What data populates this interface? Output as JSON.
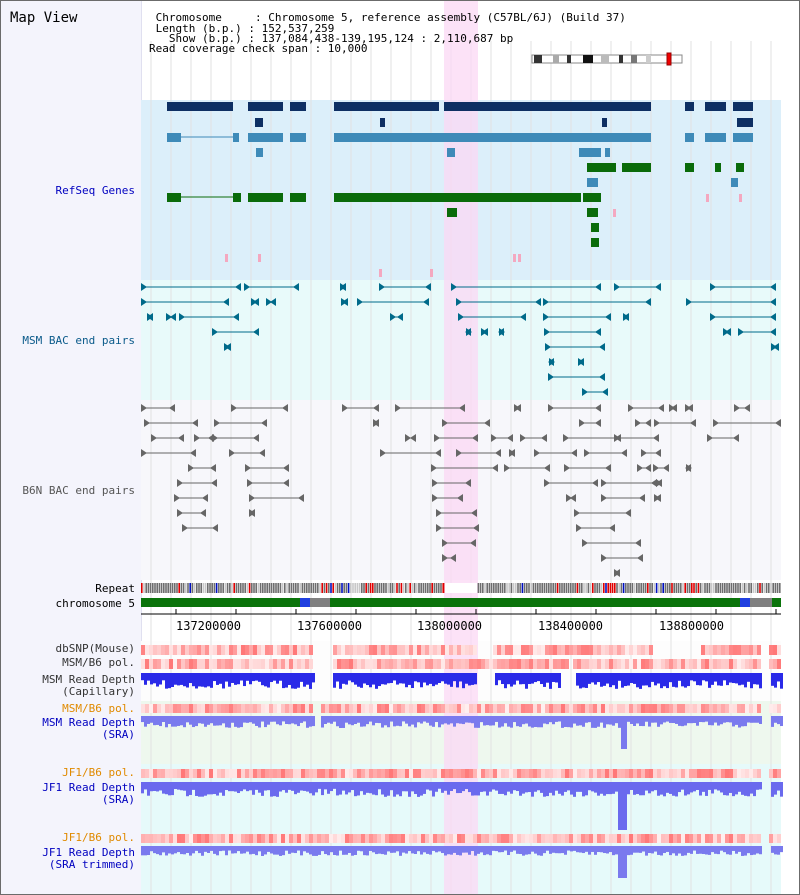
{
  "header": {
    "title": "Map View",
    "lines": [
      " Chromosome     : Chromosome 5, reference assembly (C57BL/6J) (Build 37)",
      " Length (b.p.) : 152,537,259",
      "   Show (b.p.) : 137,084,438-139,195,124 : 2,110,687 bp",
      "Read coverage check span : 10,000"
    ]
  },
  "tracks": {
    "refseq": "RefSeq Genes",
    "msm_bac": "MSM BAC end pairs",
    "b6n_bac": "B6N BAC end pairs",
    "repeat": "Repeat",
    "chromosome": "chromosome 5",
    "dbsnp": "dbSNP(Mouse)",
    "msm_b6_pol": "MSM/B6 pol.",
    "msm_depth_cap": "MSM Read Depth\n(Capillary)",
    "msm_b6_pol2": "MSM/B6 pol.",
    "msm_depth_sra": "MSM Read Depth\n(SRA)",
    "jf1_b6_pol": "JF1/B6 pol.",
    "jf1_depth_sra": "JF1 Read Depth\n(SRA)",
    "jf1_b6_pol2": "JF1/B6 pol.",
    "jf1_depth_trim": "JF1 Read Depth\n(SRA trimmed)"
  },
  "axis": {
    "ticks": [
      "137200000",
      "137600000",
      "138000000",
      "138400000",
      "138800000"
    ]
  },
  "colors": {
    "refseq_bg": "#dceffa",
    "msm_bg": "#e8fafa",
    "b6n_bg": "#f7f7fb",
    "highlight": "#fbd8f4",
    "gene_dark": "#0e2f63",
    "gene_mid": "#3e8ab8",
    "gene_green": "#0a6b0a",
    "msm_line": "#006a8a",
    "b6n_line": "#666666",
    "chrom_green": "#0a730a",
    "orange_label": "#e08a00",
    "blue_label": "#0000c0"
  }
}
